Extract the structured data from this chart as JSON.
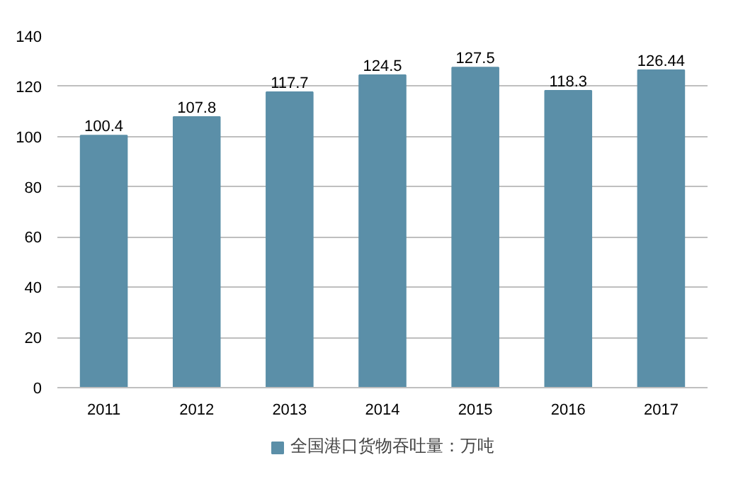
{
  "chart_data": {
    "type": "bar",
    "categories": [
      "2011",
      "2012",
      "2013",
      "2014",
      "2015",
      "2016",
      "2017"
    ],
    "series": [
      {
        "name": "全国港口货物吞吐量：万吨",
        "color": "#5b8fa8",
        "values": [
          100.4,
          107.8,
          117.7,
          124.5,
          127.5,
          118.3,
          126.44
        ]
      }
    ],
    "ylim": [
      0,
      140
    ],
    "yticks": [
      0,
      20,
      40,
      60,
      80,
      100,
      120,
      140
    ],
    "grid": "y",
    "legend": "bottom",
    "data_labels": true
  }
}
